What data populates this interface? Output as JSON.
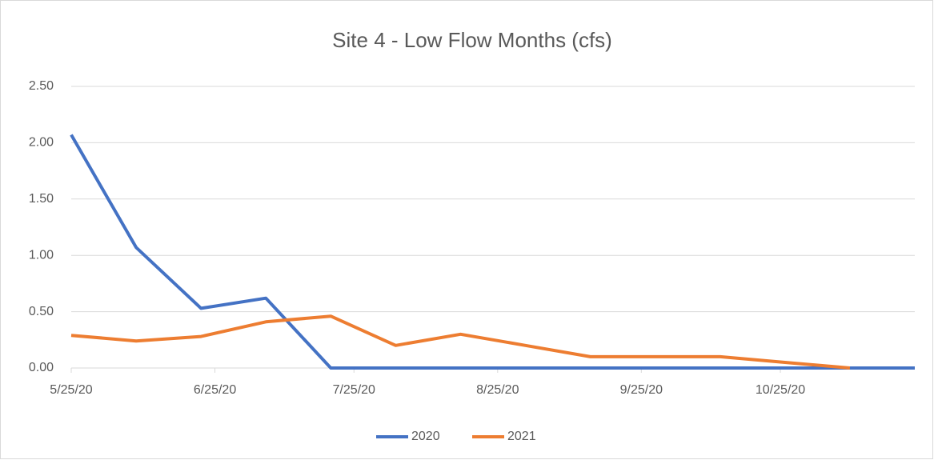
{
  "chart_data": {
    "type": "line",
    "title": "Site 4 - Low Flow Months (cfs)",
    "x": [
      "5/25/20",
      "6/8/20",
      "6/22/20",
      "7/6/20",
      "7/20/20",
      "8/3/20",
      "8/17/20",
      "8/31/20",
      "9/14/20",
      "9/28/20",
      "10/12/20",
      "10/26/20",
      "11/9/20",
      "11/23/20"
    ],
    "series": [
      {
        "name": "2020",
        "color": "#4472c4",
        "values": [
          2.07,
          1.07,
          0.53,
          0.62,
          0,
          0,
          0,
          0,
          0,
          0,
          0,
          0,
          0,
          0
        ]
      },
      {
        "name": "2021",
        "color": "#ed7d31",
        "values": [
          0.29,
          0.24,
          0.28,
          0.41,
          0.46,
          0.2,
          0.3,
          0.2,
          0.1,
          0.1,
          0.1,
          0.05,
          0,
          null
        ]
      }
    ],
    "xlim": [
      "5/25/20",
      "11/23/20"
    ],
    "xticks": [
      "5/25/20",
      "6/25/20",
      "7/25/20",
      "8/25/20",
      "9/25/20",
      "10/25/20"
    ],
    "ylim": [
      0,
      2.5
    ],
    "yticks": [
      {
        "value": 0,
        "label": "0.00"
      },
      {
        "value": 0.5,
        "label": "0.50"
      },
      {
        "value": 1,
        "label": "1.00"
      },
      {
        "value": 1.5,
        "label": "1.50"
      },
      {
        "value": 2,
        "label": "2.00"
      },
      {
        "value": 2.5,
        "label": "2.50"
      }
    ],
    "grid": true,
    "legend": "bottom"
  }
}
